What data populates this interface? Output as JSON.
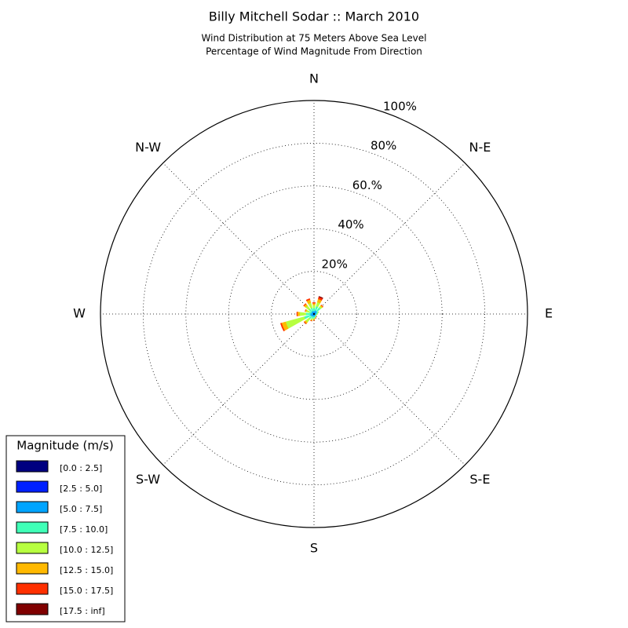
{
  "chart_data": {
    "type": "windrose",
    "title": "Billy Mitchell Sodar :: March 2010",
    "subtitle": [
      "Wind Distribution at 75 Meters Above Sea Level",
      "Percentage of Wind Magnitude From Direction"
    ],
    "legend_title": "Magnitude (m/s)",
    "legend": "lower left",
    "grid": true,
    "ylim": [
      0,
      100
    ],
    "yticks": [
      {
        "value": 20,
        "label": "20%"
      },
      {
        "value": 40,
        "label": "40%"
      },
      {
        "value": 60,
        "label": "60.%"
      },
      {
        "value": 80,
        "label": "80%"
      },
      {
        "value": 100,
        "label": "100%"
      }
    ],
    "xticks": [
      {
        "value": 0,
        "label": "N"
      },
      {
        "value": 45,
        "label": "N-E"
      },
      {
        "value": 90,
        "label": "E"
      },
      {
        "value": 135,
        "label": "S-E"
      },
      {
        "value": 180,
        "label": "S"
      },
      {
        "value": 225,
        "label": "S-W"
      },
      {
        "value": 270,
        "label": "W"
      },
      {
        "value": 315,
        "label": "N-W"
      }
    ],
    "x": [
      0,
      22.5,
      45,
      67.5,
      90,
      112.5,
      135,
      157.5,
      180,
      202.5,
      225,
      247.5,
      270,
      292.5,
      315,
      337.5
    ],
    "series": [
      {
        "name": "[0.0 : 2.5]",
        "color": "#000080",
        "values": [
          0,
          0,
          0,
          0,
          0,
          0,
          0,
          0,
          0,
          0,
          0,
          0,
          0,
          0,
          0,
          0
        ]
      },
      {
        "name": "[2.5 : 5.0]",
        "color": "#0020ff",
        "values": [
          0.3,
          0.3,
          0.3,
          0.3,
          0.3,
          0.3,
          0.3,
          0.3,
          0.3,
          0.3,
          0.3,
          0.3,
          0.3,
          0.3,
          0.3,
          0.3
        ]
      },
      {
        "name": "[5.0 : 7.5]",
        "color": "#00a4ff",
        "values": [
          1,
          1.5,
          1.5,
          1,
          0.8,
          0.6,
          0.5,
          0.8,
          1,
          1,
          1.2,
          1.5,
          1.5,
          1,
          1.2,
          1.2
        ]
      },
      {
        "name": "[7.5 : 10.0]",
        "color": "#40ffb7",
        "values": [
          1.5,
          2,
          2,
          0.8,
          0.5,
          0.3,
          0.3,
          0.5,
          0.8,
          1,
          1.5,
          3,
          2,
          1,
          1.5,
          1.5
        ]
      },
      {
        "name": "[10.0 : 12.5]",
        "color": "#b7ff40",
        "values": [
          1.5,
          2,
          1,
          0.3,
          0.2,
          0.1,
          0.2,
          0.3,
          0.5,
          0.8,
          2,
          9,
          3,
          1.5,
          2,
          2.5
        ]
      },
      {
        "name": "[12.5 : 15.0]",
        "color": "#ffb900",
        "values": [
          0.8,
          1.5,
          0.5,
          0,
          0,
          0,
          0.1,
          0.2,
          0.3,
          0.3,
          0.8,
          2,
          1,
          0.5,
          1,
          1.5
        ]
      },
      {
        "name": "[15.0 : 17.5]",
        "color": "#ff3000",
        "values": [
          0.3,
          1,
          0.2,
          0,
          0,
          0,
          0,
          0.1,
          0.1,
          0.1,
          0.2,
          0.5,
          0.3,
          0.1,
          0.3,
          0.5
        ]
      },
      {
        "name": "[17.5 : inf]",
        "color": "#800000",
        "values": [
          0,
          0.3,
          0,
          0,
          0,
          0,
          0,
          0,
          0,
          0,
          0,
          0,
          0,
          0,
          0,
          0
        ]
      }
    ]
  }
}
